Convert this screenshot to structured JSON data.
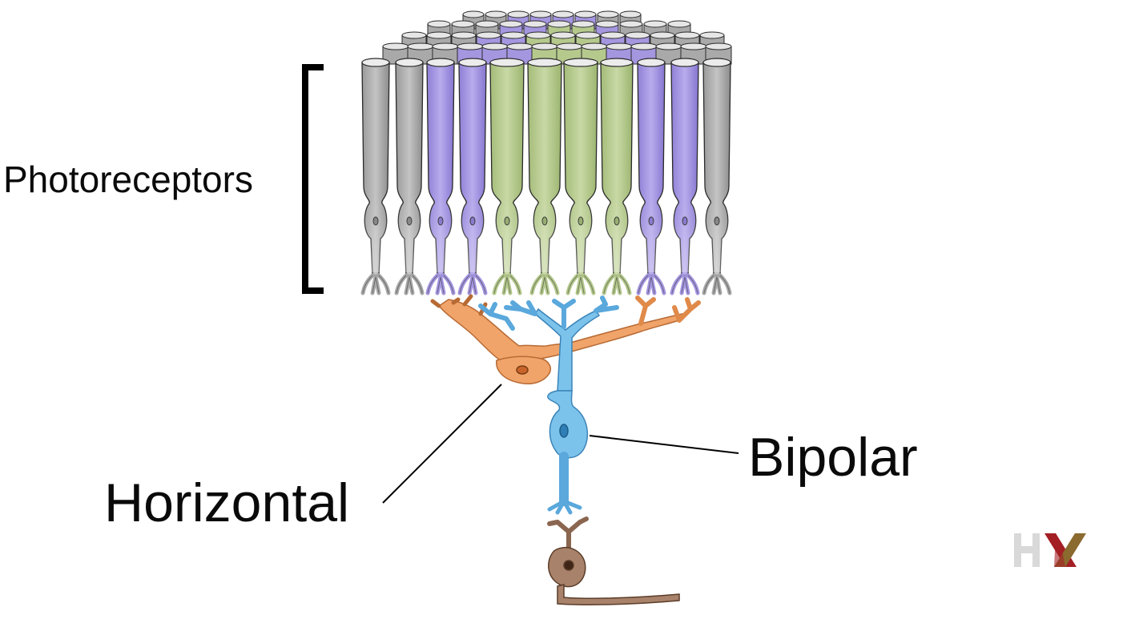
{
  "labels": {
    "photoreceptors": "Photoreceptors",
    "bipolar": "Bipolar",
    "horizontal": "Horizontal"
  },
  "logo": {
    "text": "HX",
    "colors": [
      "#d9d9d9",
      "#a31f24",
      "#8a6a2e"
    ]
  },
  "colors": {
    "rod": "#a9a9a9",
    "rod_dark": "#7d7d7d",
    "s_cone": "#a596e0",
    "s_cone_dark": "#7f6ec9",
    "m_cone": "#b5c98d",
    "m_cone_dark": "#8ea665",
    "horizontal_cell": "#f0a46a",
    "bipolar_cell": "#7cc3ec",
    "ganglion_cell": "#a8826a",
    "outline": "#2b2b2b",
    "text": "#0a0a0a"
  },
  "photoreceptor_row": [
    "rod",
    "rod",
    "s_cone",
    "s_cone",
    "m_cone",
    "m_cone",
    "m_cone",
    "m_cone",
    "s_cone",
    "s_cone",
    "rod"
  ]
}
